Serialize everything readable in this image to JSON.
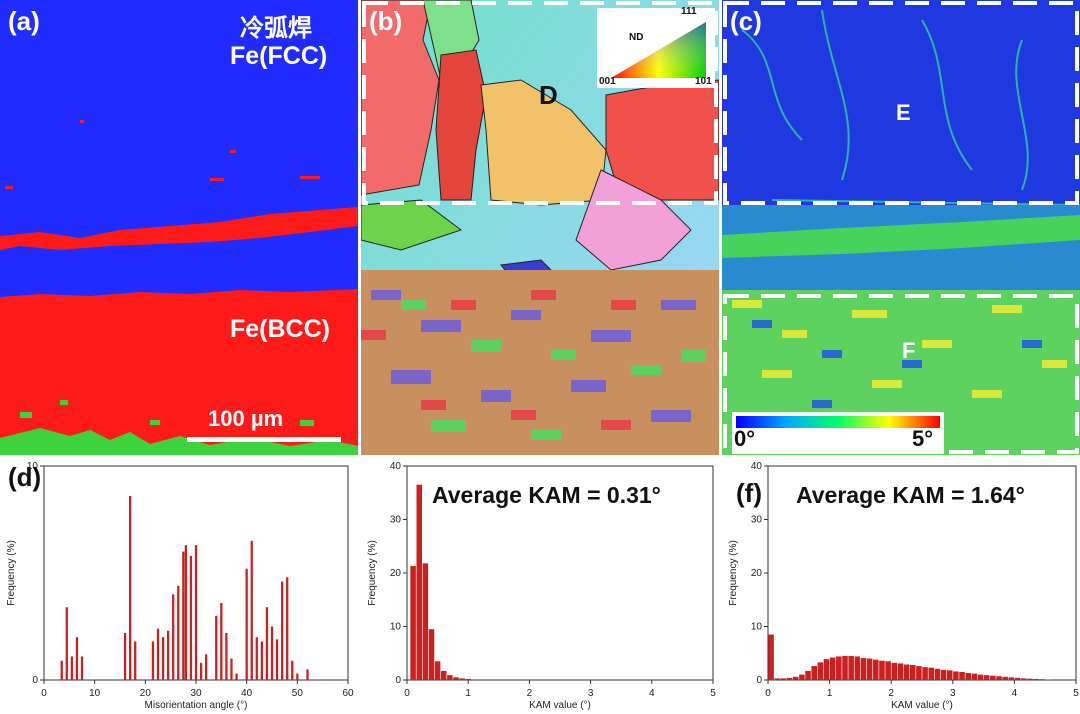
{
  "figure": {
    "panel_a": {
      "label": "(a)",
      "title_cn": "冷弧焊",
      "phase_top": "Fe(FCC)",
      "phase_bottom": "Fe(BCC)",
      "scalebar": "100 µm",
      "colors": {
        "fcc": "#1f2bff",
        "bcc": "#ff1a1a",
        "boundary": "#3ed23e"
      }
    },
    "panel_b": {
      "label": "(b)",
      "region": "D",
      "legend": {
        "ND": "ND",
        "c111": "111",
        "c001": "001",
        "c101": "101"
      }
    },
    "panel_c": {
      "label": "(c)",
      "region_top": "E",
      "region_bottom": "F",
      "scale_min": "0°",
      "scale_max": "5°"
    },
    "panel_d": {
      "label": "(d)"
    },
    "panel_e": {
      "label": "",
      "annotation": "Average KAM = 0.31°"
    },
    "panel_f": {
      "label": "(f)",
      "annotation": "Average KAM = 1.64°"
    }
  },
  "chart_data": [
    {
      "type": "bar",
      "xlabel": "Misorientation angle (°)",
      "ylabel": "Frequency (%)",
      "xlim": [
        0,
        60
      ],
      "ylim": [
        0,
        10
      ],
      "xticks": [
        0,
        10,
        20,
        30,
        40,
        50,
        60
      ],
      "yticks": [
        0,
        10
      ],
      "bar_color": "#cc1f1f",
      "x": [
        3.5,
        4.5,
        5.5,
        6.5,
        7.5,
        16,
        17,
        18,
        21.5,
        22.5,
        23.5,
        24.5,
        25.5,
        26.5,
        27.5,
        28,
        29,
        30,
        31,
        32,
        34,
        35,
        36,
        37,
        38,
        40,
        41,
        42,
        43,
        44,
        45,
        46,
        47,
        48,
        49,
        50,
        52
      ],
      "values": [
        0.9,
        3.4,
        1.1,
        2.0,
        1.1,
        2.2,
        8.6,
        1.8,
        1.8,
        2.4,
        2.0,
        2.3,
        4.0,
        4.4,
        6.0,
        6.3,
        5.8,
        6.3,
        0.8,
        1.2,
        3.0,
        3.6,
        2.2,
        1.0,
        0.3,
        5.2,
        6.5,
        2.0,
        1.8,
        3.4,
        2.5,
        1.9,
        4.6,
        4.8,
        0.9,
        0.3,
        0.5
      ]
    },
    {
      "type": "bar",
      "xlabel": "KAM value (°)",
      "ylabel": "Frequency (%)",
      "annotation": "Average KAM = 0.31°",
      "xlim": [
        0,
        5
      ],
      "ylim": [
        0,
        40
      ],
      "xticks": [
        0,
        1,
        2,
        3,
        4,
        5
      ],
      "yticks": [
        0,
        10,
        20,
        30,
        40
      ],
      "bar_color": "#cc1f1f",
      "x": [
        0.1,
        0.2,
        0.3,
        0.4,
        0.5,
        0.6,
        0.7,
        0.8,
        0.9,
        1.0
      ],
      "values": [
        21.3,
        36.5,
        21.8,
        9.5,
        3.5,
        1.7,
        0.9,
        0.5,
        0.3,
        0.2
      ]
    },
    {
      "type": "bar",
      "xlabel": "KAM value (°)",
      "ylabel": "Frequency (%)",
      "annotation": "Average KAM = 1.64°",
      "xlim": [
        0,
        5
      ],
      "ylim": [
        0,
        40
      ],
      "xticks": [
        0,
        1,
        2,
        3,
        4,
        5
      ],
      "yticks": [
        0,
        10,
        20,
        30,
        40
      ],
      "bar_color": "#cc1f1f",
      "x": [
        0.05,
        0.15,
        0.25,
        0.35,
        0.45,
        0.55,
        0.65,
        0.75,
        0.85,
        0.95,
        1.05,
        1.15,
        1.25,
        1.35,
        1.45,
        1.55,
        1.65,
        1.75,
        1.85,
        1.95,
        2.05,
        2.15,
        2.25,
        2.35,
        2.45,
        2.55,
        2.65,
        2.75,
        2.85,
        2.95,
        3.05,
        3.15,
        3.25,
        3.35,
        3.45,
        3.55,
        3.65,
        3.75,
        3.85,
        3.95,
        4.05,
        4.15,
        4.25,
        4.35,
        4.45,
        4.55
      ],
      "values": [
        8.5,
        0.3,
        0.3,
        0.4,
        0.6,
        1.0,
        1.7,
        2.6,
        3.3,
        3.9,
        4.2,
        4.4,
        4.5,
        4.5,
        4.4,
        4.1,
        4.0,
        3.8,
        3.6,
        3.5,
        3.2,
        3.1,
        2.9,
        2.8,
        2.6,
        2.4,
        2.3,
        2.1,
        1.9,
        1.8,
        1.6,
        1.5,
        1.3,
        1.2,
        1.0,
        0.9,
        0.8,
        0.7,
        0.6,
        0.5,
        0.4,
        0.3,
        0.25,
        0.2,
        0.15,
        0.1
      ]
    }
  ]
}
